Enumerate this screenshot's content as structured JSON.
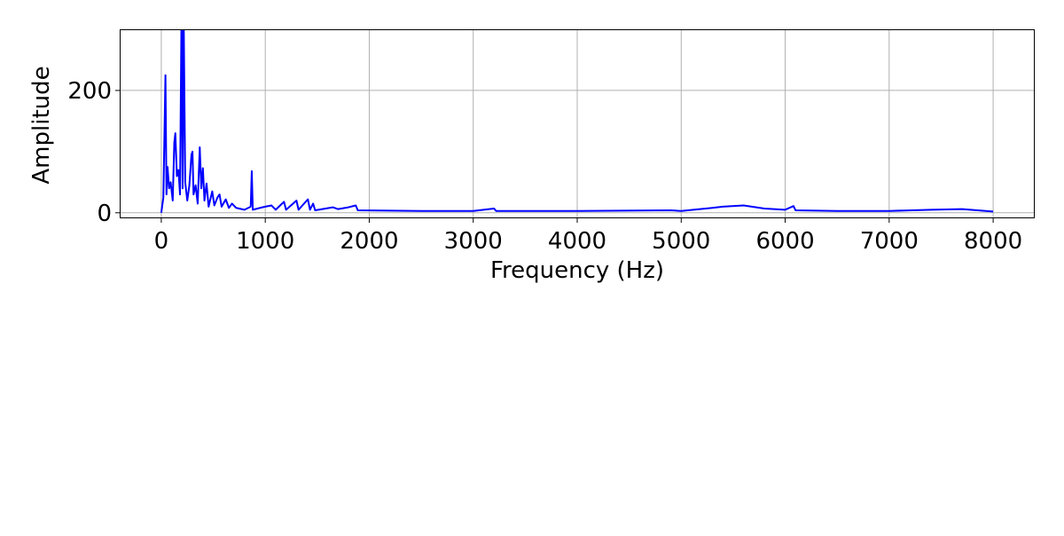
{
  "chart_data": {
    "type": "line",
    "xlabel": "Frequency (Hz)",
    "ylabel": "Amplitude",
    "x": [
      0,
      20,
      40,
      50,
      60,
      75,
      90,
      110,
      125,
      135,
      150,
      165,
      180,
      195,
      205,
      215,
      230,
      250,
      270,
      290,
      300,
      310,
      330,
      350,
      370,
      385,
      400,
      415,
      435,
      455,
      490,
      510,
      540,
      560,
      580,
      620,
      650,
      680,
      720,
      800,
      860,
      870,
      880,
      950,
      1000,
      1060,
      1100,
      1180,
      1200,
      1300,
      1320,
      1410,
      1430,
      1460,
      1480,
      1650,
      1700,
      1800,
      1870,
      1890,
      2500,
      3000,
      3200,
      3220,
      4000,
      4900,
      5000,
      5300,
      5400,
      5600,
      5800,
      6000,
      6080,
      6100,
      6500,
      7000,
      7400,
      7700,
      8000
    ],
    "series": [
      {
        "color": "#0000ff",
        "values": [
          0,
          25,
          225,
          30,
          75,
          40,
          50,
          20,
          115,
          130,
          60,
          70,
          30,
          340,
          40,
          330,
          50,
          20,
          45,
          95,
          100,
          30,
          45,
          15,
          107,
          40,
          73,
          20,
          48,
          10,
          35,
          12,
          25,
          30,
          10,
          22,
          8,
          15,
          8,
          5,
          10,
          68,
          5,
          8,
          10,
          12,
          5,
          18,
          5,
          20,
          5,
          22,
          5,
          15,
          4,
          9,
          6,
          9,
          12,
          4,
          3,
          3,
          7,
          3,
          3,
          4,
          3,
          8,
          10,
          12,
          7,
          5,
          11,
          4,
          3,
          3,
          5,
          6,
          2
        ]
      }
    ],
    "xlim": [
      -400,
      8400
    ],
    "ylim": [
      -9,
      300
    ],
    "xticks": [
      0,
      1000,
      2000,
      3000,
      4000,
      5000,
      6000,
      7000,
      8000
    ],
    "yticks": [
      0,
      200
    ],
    "grid": true
  }
}
